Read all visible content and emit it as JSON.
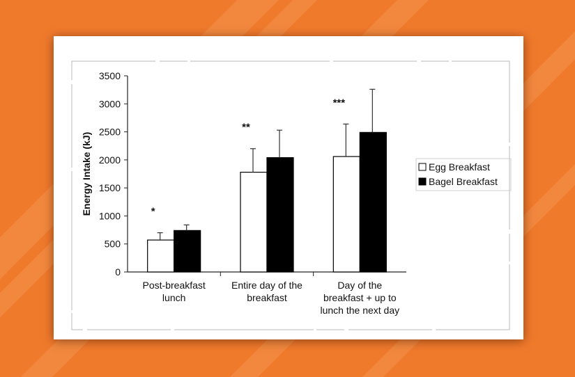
{
  "chart_data": {
    "type": "bar",
    "categories": [
      [
        "Post-breakfast",
        "lunch"
      ],
      [
        "Entire day of the",
        "breakfast"
      ],
      [
        "Day of the",
        "breakfast + up to",
        "lunch the next day"
      ]
    ],
    "series": [
      {
        "name": "Egg Breakfast",
        "color": "#ffffff",
        "values": [
          570,
          1780,
          2060
        ],
        "error": [
          130,
          420,
          580
        ]
      },
      {
        "name": "Bagel Breakfast",
        "color": "#000000",
        "values": [
          740,
          2040,
          2490
        ],
        "error": [
          100,
          490,
          770
        ]
      }
    ],
    "significance": [
      "*",
      "**",
      "***"
    ],
    "ylabel": "Energy Intake (kJ)",
    "xlabel": "",
    "ylim": [
      0,
      3500
    ],
    "yticks": [
      0,
      500,
      1000,
      1500,
      2000,
      2500,
      3000,
      3500
    ],
    "grid": false,
    "legend_position": "right"
  },
  "theme": {
    "background": "#f07a2c",
    "background_stripe": "#f59a55",
    "card": "#ffffff"
  }
}
